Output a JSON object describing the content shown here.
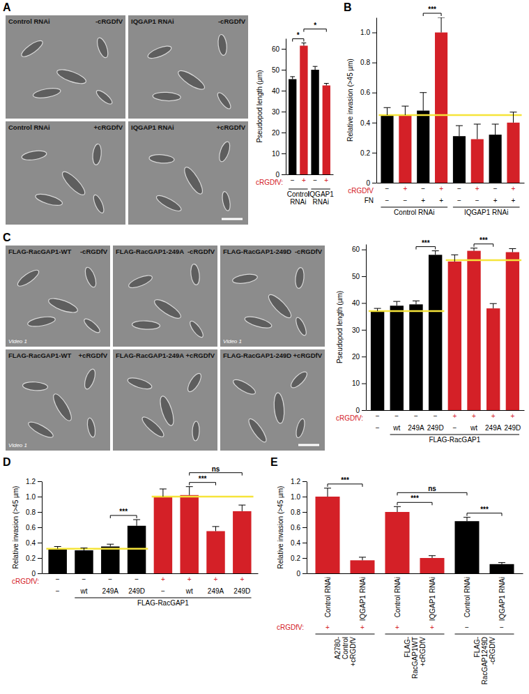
{
  "micrographs": [
    {
      "panel": "A",
      "tiles": [
        {
          "label": "Control RNAi",
          "condition": "-cRGDfV"
        },
        {
          "label": "IQGAP1 RNAi",
          "condition": "-cRGDfV"
        },
        {
          "label": "Control RNAi",
          "condition": "+cRGDfV"
        },
        {
          "label": "IQGAP1 RNAi",
          "condition": "+cRGDfV"
        }
      ]
    },
    {
      "panel": "C",
      "tiles": [
        {
          "label": "FLAG-RacGAP1-WT",
          "condition": "-cRGDfV",
          "video": "Video 1"
        },
        {
          "label": "FLAG-RacGAP1-249A",
          "condition": "-cRGDfV"
        },
        {
          "label": "FLAG-RacGAP1-249D",
          "condition": "-cRGDfV",
          "video": "Video 1"
        },
        {
          "label": "FLAG-RacGAP1-WT",
          "condition": "+cRGDfV",
          "video": "Video 1"
        },
        {
          "label": "FLAG-RacGAP1-249A",
          "condition": "+cRGDfV"
        },
        {
          "label": "FLAG-RacGAP1-249D",
          "condition": "+cRGDfV"
        }
      ]
    }
  ],
  "chart_data": [
    {
      "type": "bar",
      "categories": [
        "−",
        "+",
        "−",
        "+"
      ],
      "category_label": {
        "text": "cRGDfV:",
        "color": "#d42027"
      },
      "category_colors": [
        "#000000",
        "#d42027",
        "#000000",
        "#d42027"
      ],
      "values": [
        45.5,
        61.5,
        50,
        42.5
      ],
      "errors": [
        1.2,
        1.3,
        1.6,
        1.0
      ],
      "colors": [
        "#000000",
        "#d42027",
        "#000000",
        "#d42027"
      ],
      "ylabel": "Pseudopod length (µm)",
      "ylim": [
        0,
        65
      ],
      "yticks": [
        0,
        10,
        20,
        30,
        40,
        50,
        60
      ],
      "groups": [
        {
          "lines": [
            "Control",
            "RNAi"
          ],
          "from": 0,
          "to": 1
        },
        {
          "lines": [
            "IQGAP1",
            "RNAi"
          ],
          "from": 2,
          "to": 3
        }
      ],
      "significance": [
        {
          "from": 0,
          "to": 1,
          "label": "*"
        },
        {
          "from": 1,
          "to": 3,
          "label": "*"
        }
      ]
    },
    {
      "type": "bar",
      "panel": "B",
      "categories": [
        "−",
        "+",
        "−",
        "+",
        "−",
        "+",
        "−",
        "+"
      ],
      "category_label": {
        "text": "cRGDfV",
        "color": "#d42027"
      },
      "category_colors": [
        "#000000",
        "#d42027",
        "#000000",
        "#d42027",
        "#000000",
        "#d42027",
        "#000000",
        "#d42027"
      ],
      "rows": [
        {
          "label": "FN",
          "values": [
            "−",
            "−",
            "+",
            "+",
            "−",
            "−",
            "+",
            "+"
          ]
        }
      ],
      "values": [
        0.45,
        0.45,
        0.48,
        1.0,
        0.31,
        0.29,
        0.32,
        0.4
      ],
      "errors": [
        0.05,
        0.06,
        0.12,
        0.1,
        0.07,
        0.1,
        0.07,
        0.07
      ],
      "colors": [
        "#000000",
        "#d42027",
        "#000000",
        "#d42027",
        "#000000",
        "#d42027",
        "#000000",
        "#d42027"
      ],
      "ylabel": "Relative invasion (>45 µm)",
      "ylim": [
        0,
        1.1
      ],
      "yticks": [
        0,
        0.2,
        0.4,
        0.6,
        0.8,
        {
          "value": 1,
          "label": "1.0"
        }
      ],
      "groups": [
        {
          "lines": [
            "Control RNAi"
          ],
          "from": 0,
          "to": 3
        },
        {
          "lines": [
            "IQGAP1 RNAi"
          ],
          "from": 4,
          "to": 7
        }
      ],
      "significance": [
        {
          "from": 2,
          "to": 3,
          "label": "***"
        }
      ],
      "reference_lines": [
        {
          "value": 0.45,
          "from": 0,
          "to": 7,
          "color": "#f5e43a"
        }
      ]
    },
    {
      "type": "bar",
      "categories": [
        "−",
        "−",
        "−",
        "−",
        "+",
        "+",
        "+",
        "+"
      ],
      "category_label": {
        "text": "cRGDfV:",
        "color": "#d42027"
      },
      "category_colors": [
        "#000000",
        "#000000",
        "#000000",
        "#000000",
        "#d42027",
        "#d42027",
        "#d42027",
        "#d42027"
      ],
      "rows": [
        {
          "values": [
            "−",
            "wt",
            "249A",
            "249D",
            "−",
            "wt",
            "249A",
            "249D"
          ]
        }
      ],
      "values": [
        37,
        39,
        39.5,
        58,
        55.5,
        59.5,
        38,
        59
      ],
      "errors": [
        1.0,
        1.6,
        1.3,
        1.5,
        2.5,
        1.0,
        1.8,
        1.3
      ],
      "colors": [
        "#000000",
        "#000000",
        "#000000",
        "#000000",
        "#d42027",
        "#d42027",
        "#d42027",
        "#d42027"
      ],
      "ylabel": "Pseudopod length (µm)",
      "ylim": [
        0,
        62
      ],
      "yticks": [
        0,
        10,
        20,
        30,
        40,
        50,
        60
      ],
      "groups": [
        {
          "lines": [
            "FLAG-RacGAP1"
          ],
          "from": 1,
          "to": 7
        }
      ],
      "significance": [
        {
          "from": 2,
          "to": 3,
          "label": "***"
        },
        {
          "from": 5,
          "to": 6,
          "label": "***"
        }
      ],
      "reference_lines": [
        {
          "value": 37,
          "from": 0,
          "to": 3,
          "color": "#f5e43a"
        },
        {
          "value": 56,
          "from": 4,
          "to": 7,
          "color": "#f5e43a"
        }
      ]
    },
    {
      "type": "bar",
      "panel": "D",
      "categories": [
        "−",
        "−",
        "−",
        "−",
        "+",
        "+",
        "+",
        "+"
      ],
      "category_label": {
        "text": "cRGDfV:",
        "color": "#d42027"
      },
      "category_colors": [
        "#000000",
        "#000000",
        "#000000",
        "#000000",
        "#d42027",
        "#d42027",
        "#d42027",
        "#d42027"
      ],
      "rows": [
        {
          "values": [
            "−",
            "wt",
            "249A",
            "249D",
            "−",
            "wt",
            "249A",
            "249D"
          ]
        }
      ],
      "values": [
        0.32,
        0.3,
        0.35,
        0.62,
        1.0,
        1.02,
        0.55,
        0.81
      ],
      "errors": [
        0.03,
        0.03,
        0.03,
        0.08,
        0.1,
        0.11,
        0.06,
        0.08
      ],
      "colors": [
        "#000000",
        "#000000",
        "#000000",
        "#000000",
        "#d42027",
        "#d42027",
        "#d42027",
        "#d42027"
      ],
      "ylabel": "Relative invasion (>45 µm)",
      "ylim": [
        0,
        1.2
      ],
      "yticks": [
        0,
        0.2,
        0.4,
        0.6,
        0.8,
        {
          "value": 1,
          "label": "1.0"
        },
        1.2
      ],
      "groups": [
        {
          "lines": [
            "FLAG-RacGAP1"
          ],
          "from": 1,
          "to": 7
        }
      ],
      "significance": [
        {
          "from": 2,
          "to": 3,
          "label": "***"
        },
        {
          "from": 5,
          "to": 6,
          "label": "***"
        },
        {
          "from": 5,
          "to": 7,
          "label": "ns"
        }
      ],
      "reference_lines": [
        {
          "value": 0.32,
          "from": 0,
          "to": 3,
          "color": "#f5e43a"
        },
        {
          "value": 1.0,
          "from": 4,
          "to": 7,
          "color": "#f5e43a"
        }
      ]
    },
    {
      "type": "bar",
      "panel": "E",
      "categories": [
        "Control RNAi",
        "IQGAP1 RNAi",
        "Control RNAi",
        "IQGAP1 RNAi",
        "Control RNAi",
        "IQGAP1 RNAi"
      ],
      "category_colors": [
        "#000000",
        "#000000",
        "#000000",
        "#000000",
        "#000000",
        "#000000"
      ],
      "rows": [
        {
          "label": "cRGDfV:",
          "color": "#d42027",
          "values": [
            "+",
            "+",
            "+",
            "+",
            "−",
            "−"
          ],
          "colors": [
            "#d42027",
            "#d42027",
            "#d42027",
            "#d42027",
            "#000000",
            "#000000"
          ]
        }
      ],
      "values": [
        1.0,
        0.17,
        0.8,
        0.2,
        0.68,
        0.12
      ],
      "errors": [
        0.11,
        0.04,
        0.07,
        0.03,
        0.05,
        0.02
      ],
      "colors": [
        "#d42027",
        "#d42027",
        "#d42027",
        "#d42027",
        "#000000",
        "#000000"
      ],
      "ylabel": "Relative invasion (>45 µm)",
      "ylim": [
        0,
        1.2
      ],
      "yticks": [
        0,
        0.2,
        0.4,
        0.6,
        0.8,
        {
          "value": 1,
          "label": "1.0"
        },
        1.2
      ],
      "groups": [
        {
          "lines": [
            "A2780-",
            "Control",
            "+cRGDfV"
          ],
          "from": 0,
          "to": 1
        },
        {
          "lines": [
            "FLAG-",
            "RacGAP1WT",
            "+cRGDfV"
          ],
          "from": 2,
          "to": 3
        },
        {
          "lines": [
            "FLAG-",
            "RacGAP1249D",
            "-cRGDfV"
          ],
          "from": 4,
          "to": 5
        }
      ],
      "significance": [
        {
          "from": 0,
          "to": 1,
          "label": "***"
        },
        {
          "from": 2,
          "to": 3,
          "label": "***"
        },
        {
          "from": 4,
          "to": 5,
          "label": "***"
        },
        {
          "from": 2,
          "to": 4,
          "label": "ns"
        }
      ]
    }
  ]
}
